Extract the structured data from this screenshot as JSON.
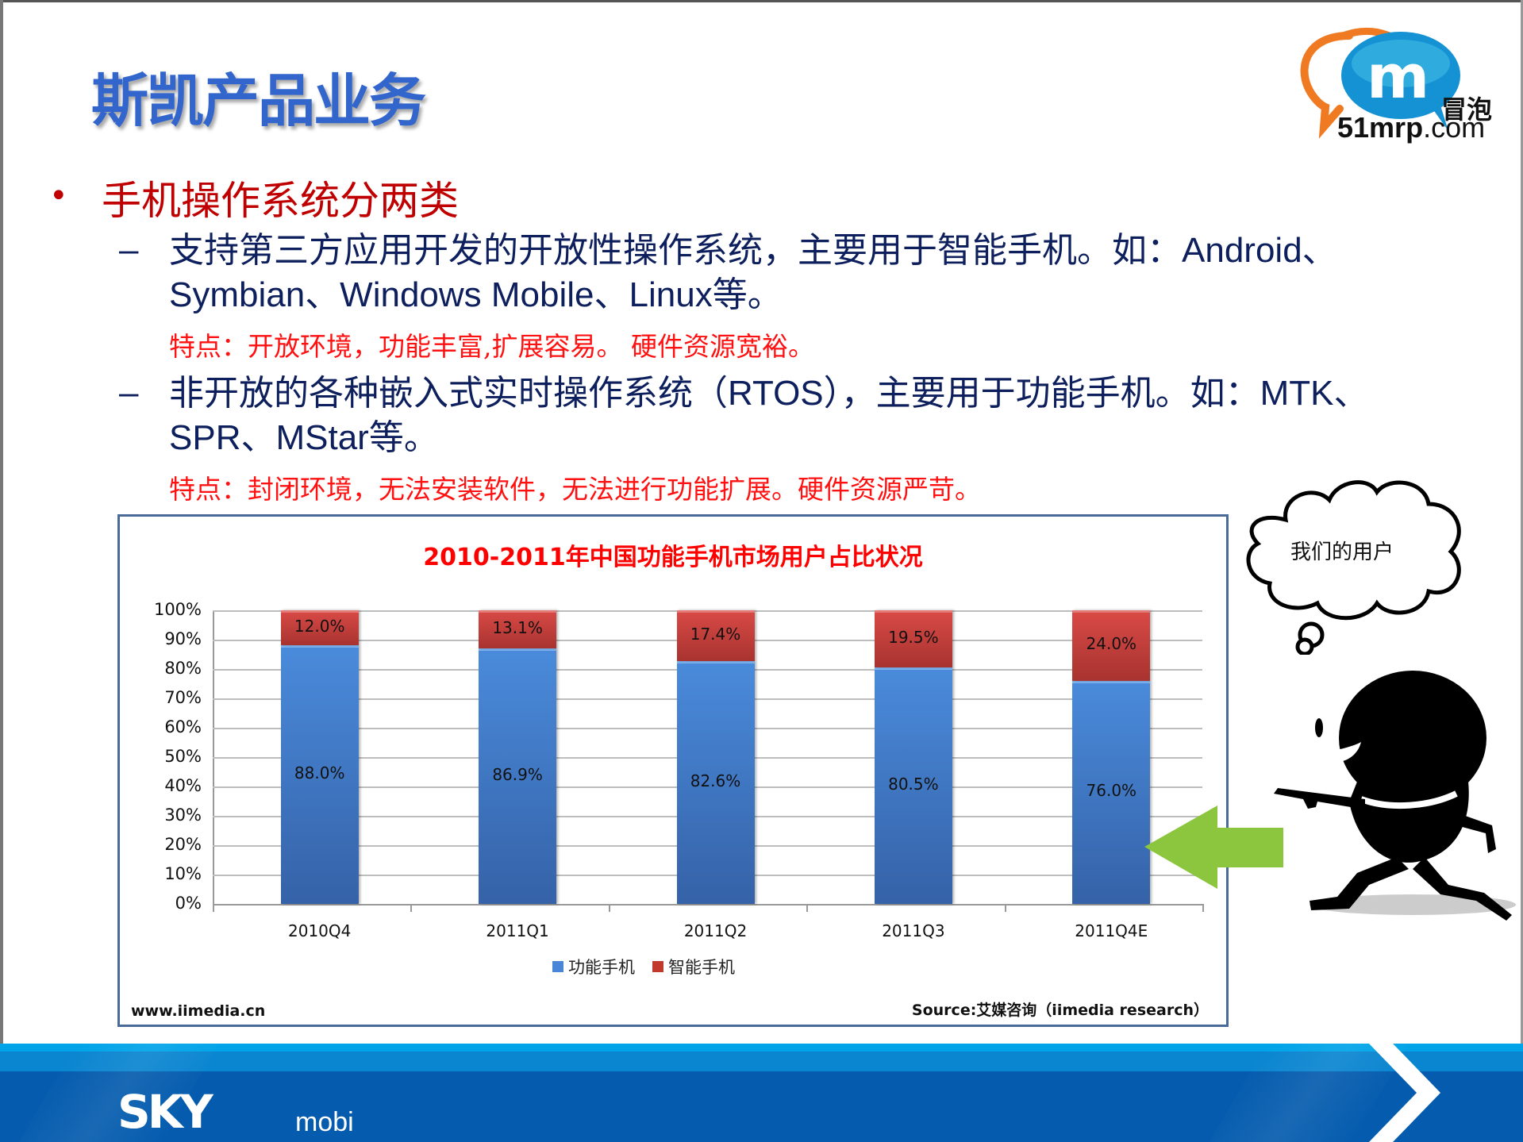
{
  "slide": {
    "title": "斯凯产品业务",
    "logo": {
      "brand_cn": "冒泡",
      "domain_bold": "51mrp",
      "domain_rest": ".com",
      "icon_letter": "m"
    },
    "bullet": "手机操作系统分两类",
    "sub_items": [
      {
        "line1_cn": "支持第三方应用开发的开放性操作系统，主要用于智能手机。如：",
        "line1_latin": "Android、",
        "line2_latin": "Symbian、Windows Mobile、Linux",
        "line2_cn": "等。",
        "feature": "特点：开放环境，功能丰富,扩展容易。 硬件资源宽裕。"
      },
      {
        "line1_cn": "非开放的各种嵌入式实时操作系统（",
        "line1_latin": "RTOS",
        "line1_cn2": "），主要用于功能手机。如：",
        "line1_latin2": "MTK、",
        "line2_latin": "SPR、MStar",
        "line2_cn": "等。",
        "feature": "特点：封闭环境，无法安装软件，无法进行功能扩展。硬件资源严苛。"
      }
    ],
    "thought_bubble": "我们的用户",
    "footer": {
      "logo": "SKY",
      "logo_sub": "mobi"
    }
  },
  "chart_data": {
    "type": "bar",
    "stacked": true,
    "title": "2010-2011年中国功能手机市场用户占比状况",
    "categories": [
      "2010Q4",
      "2011Q1",
      "2011Q2",
      "2011Q3",
      "2011Q4E"
    ],
    "series": [
      {
        "name": "功能手机",
        "color": "#4A86D8",
        "values": [
          88.0,
          86.9,
          82.6,
          80.5,
          76.0
        ],
        "labels": [
          "88.0%",
          "86.9%",
          "82.6%",
          "80.5%",
          "76.0%"
        ]
      },
      {
        "name": "智能手机",
        "color": "#C0392B",
        "values": [
          12.0,
          13.1,
          17.4,
          19.5,
          24.0
        ],
        "labels": [
          "12.0%",
          "13.1%",
          "17.4%",
          "19.5%",
          "24.0%"
        ]
      }
    ],
    "yticks": [
      "100%",
      "90%",
      "80%",
      "70%",
      "60%",
      "50%",
      "40%",
      "30%",
      "20%",
      "10%",
      "0%"
    ],
    "ylim": [
      0,
      100
    ],
    "xlabel": "",
    "ylabel": "",
    "grid": true,
    "legend_position": "bottom",
    "footer_left": "www.iimedia.cn",
    "footer_right": "Source:艾媒咨询（iimedia  research）"
  }
}
